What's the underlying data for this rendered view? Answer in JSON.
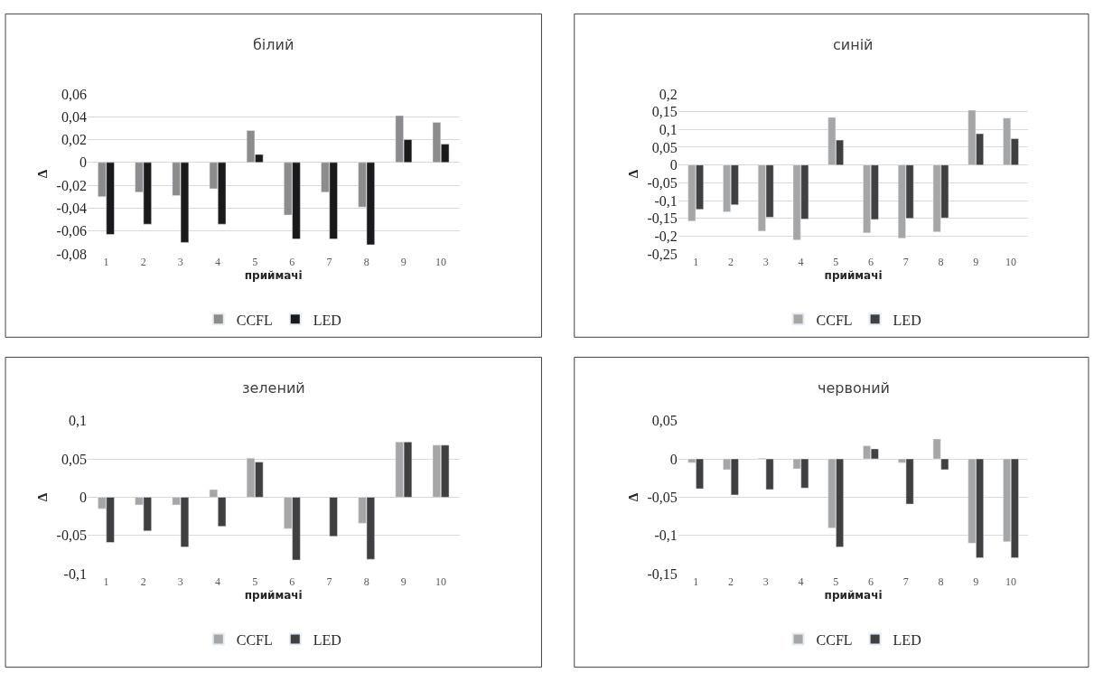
{
  "chart_data": [
    {
      "type": "bar",
      "title": "білий",
      "xlabel": "приймачі",
      "ylabel": "Δ",
      "categories": [
        "1",
        "2",
        "3",
        "4",
        "5",
        "6",
        "7",
        "8",
        "9",
        "10"
      ],
      "series": [
        {
          "name": "CCFL",
          "color": "#8c8c8c",
          "values": [
            -0.03,
            -0.026,
            -0.029,
            -0.023,
            0.028,
            -0.046,
            -0.026,
            -0.039,
            0.041,
            0.035
          ]
        },
        {
          "name": "LED",
          "color": "#1a1a1a",
          "values": [
            -0.063,
            -0.054,
            -0.07,
            -0.054,
            0.007,
            -0.067,
            -0.067,
            -0.072,
            0.02,
            0.016
          ]
        }
      ],
      "ylim": [
        -0.08,
        0.06
      ],
      "yticks": [
        {
          "value": -0.08,
          "label": "-0,08"
        },
        {
          "value": -0.06,
          "label": "-0,06"
        },
        {
          "value": -0.04,
          "label": "-0,04"
        },
        {
          "value": -0.02,
          "label": "-0,02"
        },
        0,
        {
          "value": 0.02,
          "label": "0,02"
        },
        {
          "value": 0.04,
          "label": "0,04"
        },
        {
          "value": 0.06,
          "label": "0,06"
        }
      ],
      "grid": "y",
      "legend": "bottom"
    },
    {
      "type": "bar",
      "title": "синій",
      "xlabel": "приймачі",
      "ylabel": "Δ",
      "categories": [
        "1",
        "2",
        "3",
        "4",
        "5",
        "6",
        "7",
        "8",
        "9",
        "10"
      ],
      "series": [
        {
          "name": "CCFL",
          "color": "#a6a6a6",
          "values": [
            -0.158,
            -0.132,
            -0.186,
            -0.211,
            0.134,
            -0.191,
            -0.206,
            -0.188,
            0.154,
            0.132
          ]
        },
        {
          "name": "LED",
          "color": "#404040",
          "values": [
            -0.125,
            -0.112,
            -0.147,
            -0.152,
            0.07,
            -0.153,
            -0.15,
            -0.149,
            0.088,
            0.074
          ]
        }
      ],
      "ylim": [
        -0.25,
        0.2
      ],
      "yticks": [
        {
          "value": -0.25,
          "label": "-0,25"
        },
        {
          "value": -0.2,
          "label": "-0,2"
        },
        {
          "value": -0.15,
          "label": "-0,15"
        },
        {
          "value": -0.1,
          "label": "-0,1"
        },
        {
          "value": -0.05,
          "label": "-0,05"
        },
        0,
        {
          "value": 0.05,
          "label": "0,05"
        },
        {
          "value": 0.1,
          "label": "0,1"
        },
        {
          "value": 0.15,
          "label": "0,15"
        },
        {
          "value": 0.2,
          "label": "0,2"
        }
      ],
      "grid": "y",
      "legend": "bottom"
    },
    {
      "type": "bar",
      "title": "зелений",
      "xlabel": "приймачі",
      "ylabel": "Δ",
      "categories": [
        "1",
        "2",
        "3",
        "4",
        "5",
        "6",
        "7",
        "8",
        "9",
        "10"
      ],
      "series": [
        {
          "name": "CCFL",
          "color": "#a6a6a6",
          "values": [
            -0.015,
            -0.01,
            -0.01,
            0.01,
            0.051,
            -0.041,
            null,
            -0.034,
            0.072,
            0.068
          ]
        },
        {
          "name": "LED",
          "color": "#404040",
          "values": [
            -0.059,
            -0.044,
            -0.065,
            -0.038,
            0.046,
            -0.082,
            -0.051,
            -0.081,
            0.072,
            0.068
          ]
        }
      ],
      "ylim": [
        -0.1,
        0.1
      ],
      "yticks": [
        {
          "value": -0.1,
          "label": "-0,1"
        },
        {
          "value": -0.05,
          "label": "-0,05"
        },
        0,
        {
          "value": 0.05,
          "label": "0,05"
        },
        {
          "value": 0.1,
          "label": "0,1"
        }
      ],
      "grid": "y",
      "legend": "bottom"
    },
    {
      "type": "bar",
      "title": "червоний",
      "xlabel": "приймачі",
      "ylabel": "Δ",
      "categories": [
        "1",
        "2",
        "3",
        "4",
        "5",
        "6",
        "7",
        "8",
        "9",
        "10"
      ],
      "series": [
        {
          "name": "CCFL",
          "color": "#a6a6a6",
          "values": [
            -0.005,
            -0.014,
            0.001,
            -0.013,
            -0.09,
            0.017,
            -0.005,
            0.026,
            -0.11,
            -0.108
          ]
        },
        {
          "name": "LED",
          "color": "#404040",
          "values": [
            -0.039,
            -0.047,
            -0.04,
            -0.038,
            -0.115,
            0.013,
            -0.059,
            -0.014,
            -0.129,
            -0.129
          ]
        }
      ],
      "ylim": [
        -0.15,
        0.05
      ],
      "yticks": [
        {
          "value": -0.15,
          "label": "-0,15"
        },
        {
          "value": -0.1,
          "label": "-0,1"
        },
        {
          "value": -0.05,
          "label": "-0,05"
        },
        0,
        {
          "value": 0.05,
          "label": "0,05"
        }
      ],
      "grid": "y",
      "legend": "bottom"
    }
  ]
}
